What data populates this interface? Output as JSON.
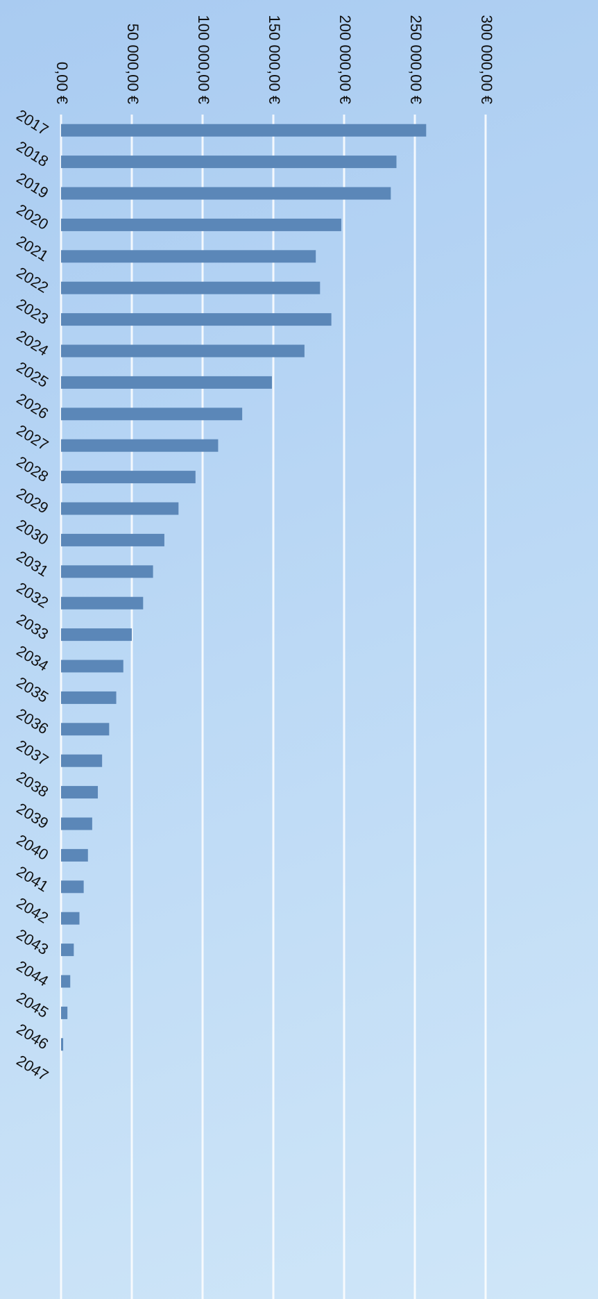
{
  "chart_data": {
    "type": "bar",
    "orientation": "horizontal",
    "categories": [
      "2017",
      "2018",
      "2019",
      "2020",
      "2021",
      "2022",
      "2023",
      "2024",
      "2025",
      "2026",
      "2027",
      "2028",
      "2029",
      "2030",
      "2031",
      "2032",
      "2033",
      "2034",
      "2035",
      "2036",
      "2037",
      "2038",
      "2039",
      "2040",
      "2041",
      "2042",
      "2043",
      "2044",
      "2045",
      "2046",
      "2047"
    ],
    "values": [
      258000,
      237000,
      233000,
      198000,
      180000,
      183000,
      191000,
      172000,
      149000,
      128000,
      111000,
      95000,
      83000,
      73000,
      65000,
      58000,
      50000,
      44000,
      39000,
      34000,
      29000,
      26000,
      22000,
      19000,
      16000,
      13000,
      9000,
      6500,
      4500,
      1500,
      0
    ],
    "color": "#5b87b8",
    "xlim": [
      0,
      300000
    ],
    "xticks": [
      {
        "value": 0,
        "label": "0,00 €"
      },
      {
        "value": 50000,
        "label": "50 000,00 €"
      },
      {
        "value": 100000,
        "label": "100 000,00 €"
      },
      {
        "value": 150000,
        "label": "150 000,00 €"
      },
      {
        "value": 200000,
        "label": "200 000,00 €"
      },
      {
        "value": 250000,
        "label": "250 000,00 €"
      },
      {
        "value": 300000,
        "label": "300 000,00 €"
      }
    ],
    "grid": true
  }
}
